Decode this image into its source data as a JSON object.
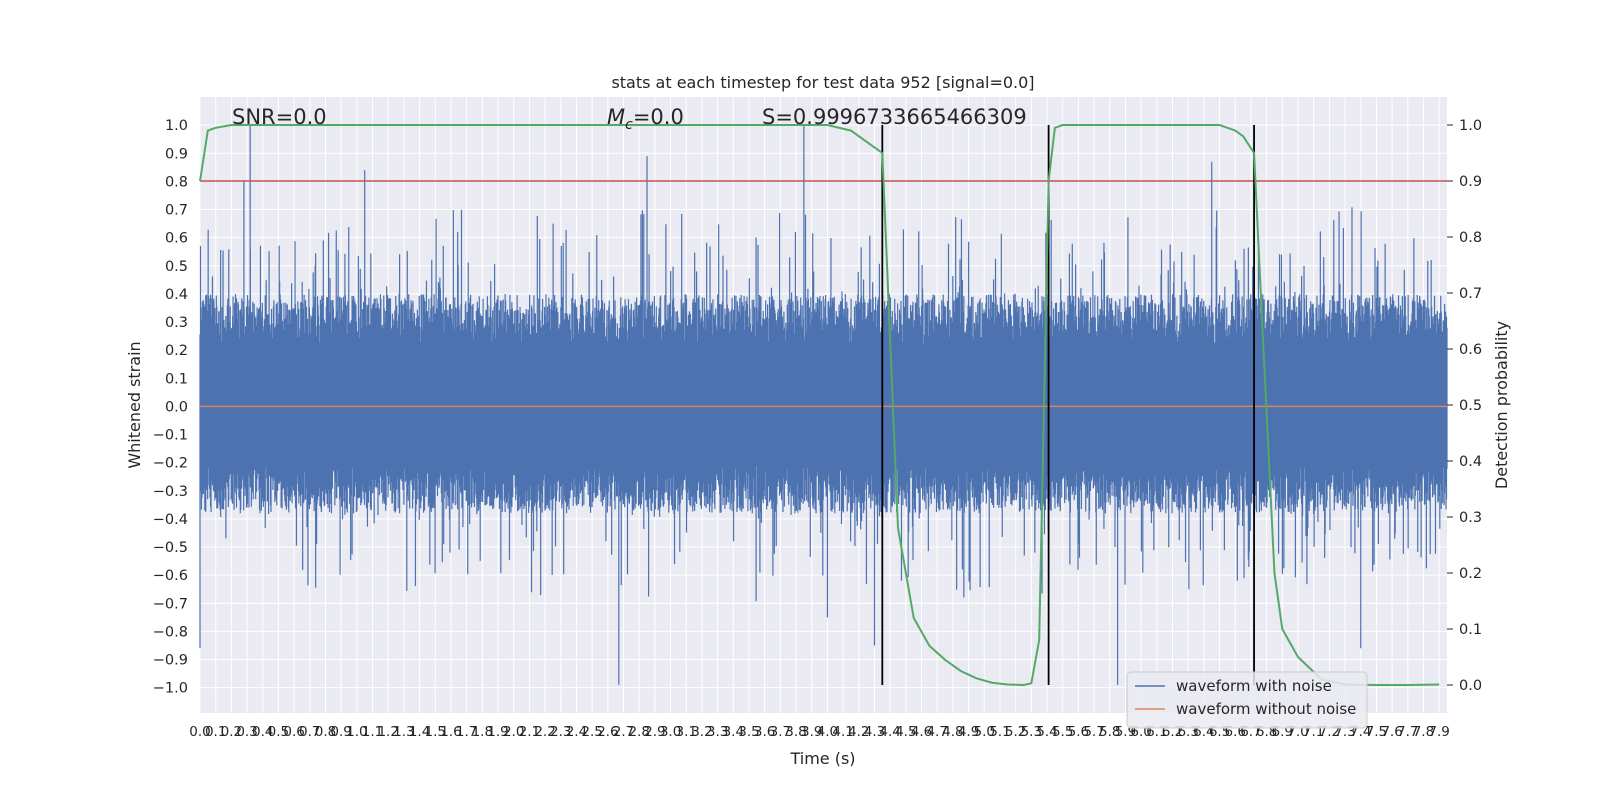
{
  "chart_data": {
    "type": "line",
    "title": "stats at each timestep for test data 952 [signal=0.0]",
    "xlabel": "Time (s)",
    "ylabel_left": "Whitened strain",
    "ylabel_right": "Detection probability",
    "xlim": [
      0.0,
      7.95
    ],
    "ylim_left": [
      -1.09,
      1.1
    ],
    "ylim_right": [
      -0.05,
      1.05
    ],
    "grid": true,
    "x_ticks": [
      "0.0",
      "0.1",
      "0.2",
      "0.3",
      "0.4",
      "0.5",
      "0.6",
      "0.7",
      "0.8",
      "0.9",
      "1.0",
      "1.1",
      "1.2",
      "1.3",
      "1.4",
      "1.5",
      "1.6",
      "1.7",
      "1.8",
      "1.9",
      "2.0",
      "2.1",
      "2.2",
      "2.3",
      "2.4",
      "2.5",
      "2.6",
      "2.7",
      "2.8",
      "2.9",
      "3.0",
      "3.1",
      "3.2",
      "3.3",
      "3.4",
      "3.5",
      "3.6",
      "3.7",
      "3.8",
      "3.9",
      "4.0",
      "4.1",
      "4.2",
      "4.3",
      "4.4",
      "4.5",
      "4.6",
      "4.7",
      "4.8",
      "4.9",
      "5.0",
      "5.1",
      "5.2",
      "5.3",
      "5.4",
      "5.5",
      "5.6",
      "5.7",
      "5.8",
      "5.9",
      "6.0",
      "6.1",
      "6.2",
      "6.3",
      "6.4",
      "6.5",
      "6.6",
      "6.7",
      "6.8",
      "6.9",
      "7.0",
      "7.1",
      "7.2",
      "7.3",
      "7.4",
      "7.5",
      "7.6",
      "7.7",
      "7.8",
      "7.9"
    ],
    "y_ticks_left": [
      "1.0",
      "0.9",
      "0.8",
      "0.7",
      "0.6",
      "0.5",
      "0.4",
      "0.3",
      "0.2",
      "0.1",
      "0.0",
      "−0.1",
      "−0.2",
      "−0.3",
      "−0.4",
      "−0.5",
      "−0.6",
      "−0.7",
      "−0.8",
      "−0.9",
      "−1.0"
    ],
    "y_ticks_right": [
      "1.0",
      "0.9",
      "0.8",
      "0.7",
      "0.6",
      "0.5",
      "0.4",
      "0.3",
      "0.2",
      "0.1",
      "0.0"
    ],
    "annotations": {
      "snr": "SNR=0.0",
      "mc_symbol": "M",
      "mc_sub": "c",
      "mc_value": "=0.0",
      "s_value": "S=0.9996733665466309"
    },
    "threshold": {
      "value": 0.9,
      "axis": "right",
      "color": "#c44e52"
    },
    "vlines_x": [
      4.35,
      5.41,
      6.72
    ],
    "series": [
      {
        "name": "waveform with noise",
        "color": "#4c72b0",
        "axis": "left",
        "envelope_typical": [
          -0.38,
          0.4
        ],
        "peaks": [
          [
            0.0,
            -0.86
          ],
          [
            0.32,
            1.0
          ],
          [
            0.28,
            0.8
          ],
          [
            1.05,
            0.84
          ],
          [
            2.67,
            -0.99
          ],
          [
            2.85,
            0.89
          ],
          [
            3.85,
            1.0
          ],
          [
            4.0,
            -0.75
          ],
          [
            4.3,
            -0.85
          ],
          [
            5.85,
            -0.99
          ],
          [
            6.45,
            0.87
          ],
          [
            7.4,
            -0.86
          ]
        ]
      },
      {
        "name": "waveform without noise",
        "color": "#dd8452",
        "axis": "left",
        "x": [
          0.0,
          7.95
        ],
        "y": [
          0.0,
          0.0
        ]
      },
      {
        "name": "Detection probability",
        "color": "#55a868",
        "axis": "right",
        "x": [
          0.0,
          0.05,
          0.1,
          0.2,
          0.5,
          1.0,
          2.0,
          3.0,
          4.0,
          4.15,
          4.25,
          4.35,
          4.45,
          4.55,
          4.65,
          4.75,
          4.85,
          4.95,
          5.05,
          5.15,
          5.25,
          5.3,
          5.35,
          5.41,
          5.45,
          5.5,
          5.55,
          6.5,
          6.6,
          6.65,
          6.72,
          6.78,
          6.85,
          6.9,
          7.0,
          7.15,
          7.3,
          7.5,
          7.7,
          7.9
        ],
        "y": [
          0.9,
          0.99,
          0.995,
          1.0,
          1.0,
          1.0,
          1.0,
          1.0,
          1.0,
          0.99,
          0.97,
          0.95,
          0.28,
          0.12,
          0.07,
          0.045,
          0.025,
          0.012,
          0.004,
          0.001,
          0.0,
          0.003,
          0.08,
          0.9,
          0.995,
          1.0,
          1.0,
          1.0,
          0.99,
          0.98,
          0.95,
          0.6,
          0.2,
          0.1,
          0.05,
          0.01,
          0.001,
          0.0,
          0.0,
          0.001
        ]
      }
    ],
    "legend": {
      "location": "lower right",
      "entries": [
        {
          "label": "waveform with noise",
          "color": "#4c72b0"
        },
        {
          "label": "waveform without noise",
          "color": "#dd8452"
        }
      ]
    }
  }
}
